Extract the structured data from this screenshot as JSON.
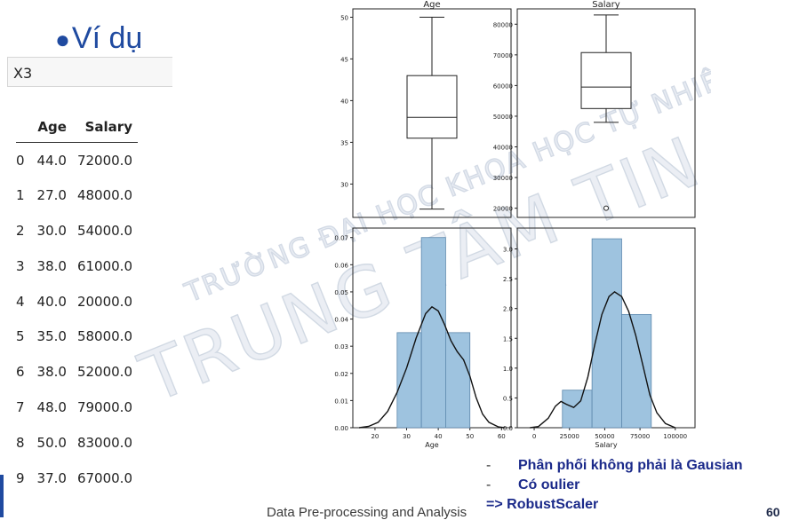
{
  "slide": {
    "bullet": "Ví dụ",
    "var_name": "X3",
    "footer": "Data Pre-processing and Analysis",
    "page_number": "60",
    "watermark_line1": "TRƯỜNG ĐẠI HỌC KHOA HỌC TỰ NHIÊN",
    "watermark_line2": "TRUNG TÂM TIN HỌC"
  },
  "table": {
    "headers": [
      "",
      "Age",
      "Salary"
    ],
    "rows": [
      [
        "0",
        "44.0",
        "72000.0"
      ],
      [
        "1",
        "27.0",
        "48000.0"
      ],
      [
        "2",
        "30.0",
        "54000.0"
      ],
      [
        "3",
        "38.0",
        "61000.0"
      ],
      [
        "4",
        "40.0",
        "20000.0"
      ],
      [
        "5",
        "35.0",
        "58000.0"
      ],
      [
        "6",
        "38.0",
        "52000.0"
      ],
      [
        "7",
        "48.0",
        "79000.0"
      ],
      [
        "8",
        "50.0",
        "83000.0"
      ],
      [
        "9",
        "37.0",
        "67000.0"
      ]
    ]
  },
  "notes": {
    "line1": "Phân phối không phải là Gausian",
    "line2": "Có oulier",
    "conclusion": "=> RobustScaler"
  },
  "chart_data": [
    {
      "type": "box",
      "title": "Age",
      "ylim": [
        26,
        51
      ],
      "yticks": [
        30,
        35,
        40,
        45,
        50
      ],
      "stats": {
        "min": 27,
        "q1": 35.5,
        "median": 38,
        "q3": 43,
        "max": 50
      },
      "outliers": []
    },
    {
      "type": "box",
      "title": "Salary",
      "ylim": [
        17000,
        85000
      ],
      "yticks": [
        20000,
        30000,
        40000,
        50000,
        60000,
        70000,
        80000
      ],
      "stats": {
        "min": 48000,
        "q1": 52500,
        "median": 59500,
        "q3": 70750,
        "max": 83000
      },
      "outliers": [
        20000
      ]
    },
    {
      "type": "histogram",
      "xlabel": "Age",
      "xlim": [
        13,
        63
      ],
      "ylim": [
        0,
        0.0735
      ],
      "xticks": [
        20,
        30,
        40,
        50,
        60
      ],
      "yticks": [
        0.0,
        0.01,
        0.02,
        0.03,
        0.04,
        0.05,
        0.06,
        0.07
      ],
      "bins": [
        [
          27,
          34.67,
          0.035
        ],
        [
          34.67,
          42.33,
          0.07
        ],
        [
          42.33,
          50,
          0.035
        ]
      ],
      "kde": [
        [
          15,
          0.0
        ],
        [
          18,
          0.0005
        ],
        [
          21,
          0.002
        ],
        [
          24,
          0.006
        ],
        [
          27,
          0.013
        ],
        [
          30,
          0.022
        ],
        [
          33,
          0.033
        ],
        [
          36,
          0.042
        ],
        [
          38,
          0.0445
        ],
        [
          40,
          0.043
        ],
        [
          42,
          0.038
        ],
        [
          44,
          0.032
        ],
        [
          46,
          0.028
        ],
        [
          48,
          0.025
        ],
        [
          50,
          0.019
        ],
        [
          52,
          0.011
        ],
        [
          54,
          0.005
        ],
        [
          56,
          0.002
        ],
        [
          59,
          0.0003
        ],
        [
          61,
          0.0
        ]
      ],
      "color": "#9ec3df"
    },
    {
      "type": "histogram",
      "xlabel": "Salary",
      "xlim": [
        -12000,
        114000
      ],
      "ylim": [
        0,
        3.35
      ],
      "xticks": [
        0,
        25000,
        50000,
        75000,
        100000
      ],
      "yticks": [
        0.0,
        0.5,
        1.0,
        1.5,
        2.0,
        2.5,
        3.0
      ],
      "tick_scale": "1e-5",
      "bins": [
        [
          20000,
          41000,
          0.63
        ],
        [
          41000,
          62000,
          3.17
        ],
        [
          62000,
          83000,
          1.9
        ]
      ],
      "kde": [
        [
          -3000,
          0.0
        ],
        [
          3000,
          0.02
        ],
        [
          10000,
          0.16
        ],
        [
          15000,
          0.36
        ],
        [
          19000,
          0.44
        ],
        [
          23000,
          0.39
        ],
        [
          28000,
          0.34
        ],
        [
          33000,
          0.45
        ],
        [
          38000,
          0.85
        ],
        [
          43000,
          1.4
        ],
        [
          48000,
          1.9
        ],
        [
          53000,
          2.2
        ],
        [
          57000,
          2.28
        ],
        [
          62000,
          2.2
        ],
        [
          67000,
          1.95
        ],
        [
          72000,
          1.55
        ],
        [
          77000,
          1.05
        ],
        [
          82000,
          0.55
        ],
        [
          87000,
          0.25
        ],
        [
          93000,
          0.07
        ],
        [
          100000,
          0.0
        ]
      ],
      "color": "#9ec3df"
    }
  ]
}
